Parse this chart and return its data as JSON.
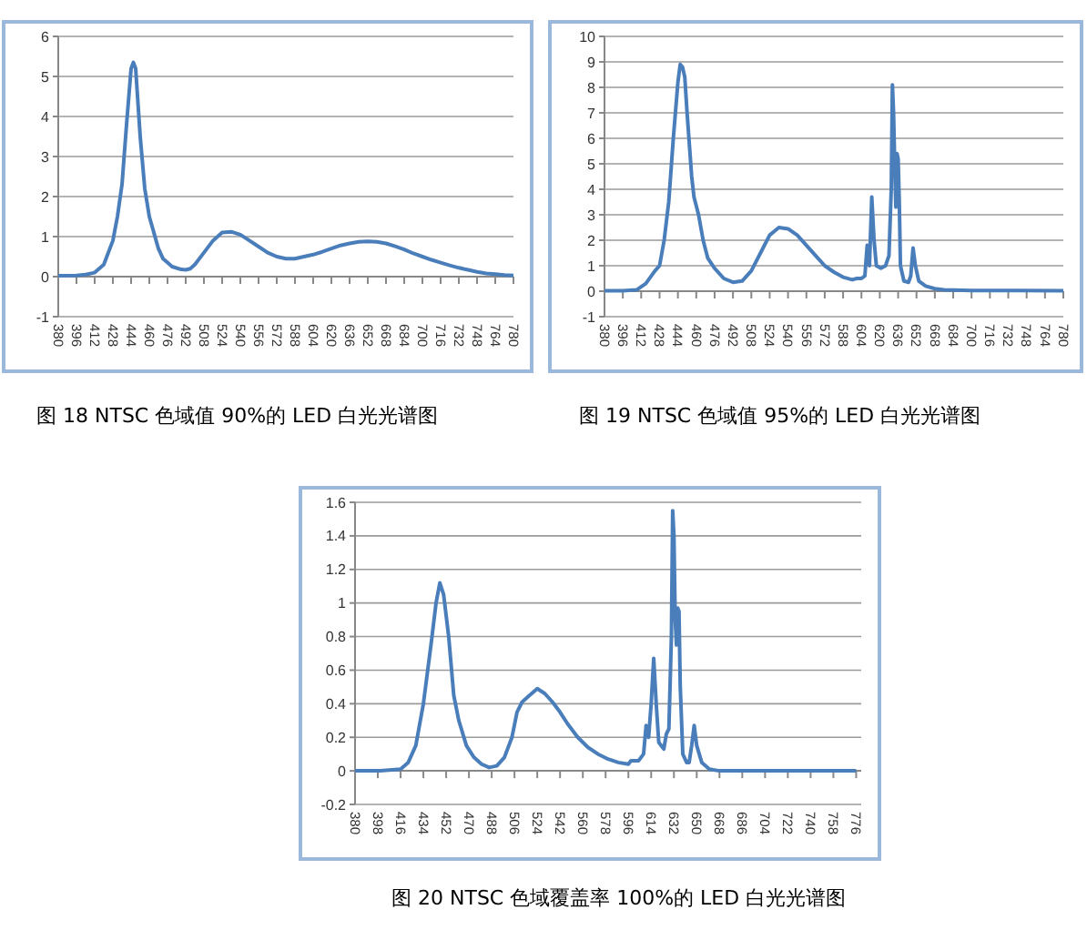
{
  "chart_data": [
    {
      "type": "line",
      "annotations": [
        "图 18 NTSC 色域值 90%的 LED 白光光谱图"
      ],
      "xlim": [
        380,
        780
      ],
      "xticks": [
        380,
        396,
        412,
        428,
        444,
        460,
        476,
        492,
        508,
        524,
        540,
        556,
        572,
        588,
        604,
        620,
        636,
        652,
        668,
        684,
        700,
        716,
        732,
        748,
        764,
        780
      ],
      "ylim": [
        -1,
        6
      ],
      "yticks": [
        -1,
        0,
        1,
        2,
        3,
        4,
        5,
        6
      ],
      "grid": "y",
      "marker": "none",
      "line_style": "solid",
      "series": [
        {
          "color": "#4a7ebb",
          "x": [
            380,
            396,
            404,
            412,
            420,
            428,
            432,
            436,
            440,
            444,
            446,
            448,
            452,
            456,
            460,
            464,
            468,
            472,
            476,
            480,
            488,
            492,
            496,
            500,
            508,
            516,
            524,
            532,
            540,
            548,
            556,
            564,
            572,
            580,
            588,
            596,
            604,
            612,
            620,
            628,
            636,
            644,
            652,
            660,
            668,
            676,
            684,
            692,
            700,
            708,
            716,
            724,
            732,
            740,
            748,
            756,
            764,
            772,
            780
          ],
          "values": [
            0.02,
            0.03,
            0.05,
            0.1,
            0.3,
            0.9,
            1.5,
            2.3,
            3.8,
            5.2,
            5.35,
            5.2,
            3.5,
            2.2,
            1.5,
            1.1,
            0.7,
            0.45,
            0.35,
            0.25,
            0.18,
            0.17,
            0.2,
            0.3,
            0.6,
            0.9,
            1.1,
            1.12,
            1.05,
            0.9,
            0.75,
            0.6,
            0.5,
            0.45,
            0.45,
            0.5,
            0.55,
            0.62,
            0.7,
            0.78,
            0.83,
            0.87,
            0.88,
            0.87,
            0.83,
            0.76,
            0.68,
            0.58,
            0.5,
            0.42,
            0.35,
            0.28,
            0.22,
            0.17,
            0.12,
            0.08,
            0.06,
            0.04,
            0.03
          ]
        }
      ]
    },
    {
      "type": "line",
      "annotations": [
        "图 19 NTSC 色域值 95%的 LED 白光光谱图"
      ],
      "xlim": [
        380,
        780
      ],
      "xticks": [
        380,
        396,
        412,
        428,
        444,
        460,
        476,
        492,
        508,
        524,
        540,
        556,
        572,
        588,
        604,
        620,
        636,
        652,
        668,
        684,
        700,
        716,
        732,
        748,
        764,
        780
      ],
      "ylim": [
        -1,
        10
      ],
      "yticks": [
        -1,
        0,
        1,
        2,
        3,
        4,
        5,
        6,
        7,
        8,
        9,
        10
      ],
      "grid": "y",
      "marker": "none",
      "line_style": "solid",
      "series": [
        {
          "color": "#4a7ebb",
          "x": [
            380,
            396,
            408,
            416,
            424,
            428,
            432,
            436,
            440,
            444,
            446,
            448,
            450,
            452,
            456,
            458,
            462,
            466,
            470,
            476,
            484,
            492,
            500,
            508,
            516,
            524,
            532,
            540,
            548,
            556,
            564,
            572,
            580,
            588,
            596,
            600,
            604,
            607,
            609,
            611,
            613,
            615,
            617,
            621,
            625,
            628,
            630,
            631,
            632,
            633,
            634,
            635,
            636,
            637,
            638,
            641,
            645,
            647,
            649,
            651,
            654,
            660,
            668,
            676,
            700,
            740,
            780
          ],
          "values": [
            0.02,
            0.02,
            0.05,
            0.3,
            0.8,
            1.0,
            2,
            3.5,
            6,
            8.2,
            8.9,
            8.8,
            8.4,
            7,
            4.5,
            3.7,
            3,
            2,
            1.3,
            0.9,
            0.5,
            0.35,
            0.4,
            0.8,
            1.5,
            2.2,
            2.5,
            2.45,
            2.2,
            1.8,
            1.4,
            1.0,
            0.75,
            0.55,
            0.45,
            0.5,
            0.5,
            0.6,
            1.8,
            1.0,
            3.7,
            2,
            1.0,
            0.9,
            1.0,
            1.4,
            4,
            8.1,
            7,
            5,
            3.3,
            5.4,
            5.2,
            3.5,
            1.0,
            0.4,
            0.35,
            0.6,
            1.7,
            1.0,
            0.4,
            0.2,
            0.1,
            0.05,
            0.03,
            0.03,
            0.02
          ]
        }
      ]
    },
    {
      "type": "line",
      "annotations": [
        "图 20 NTSC 色域覆盖率 100%的 LED 白光光谱图"
      ],
      "xlim": [
        380,
        780
      ],
      "xticks": [
        380,
        398,
        416,
        434,
        452,
        470,
        488,
        506,
        524,
        542,
        560,
        578,
        596,
        614,
        632,
        650,
        668,
        686,
        704,
        722,
        740,
        758,
        776
      ],
      "ylim": [
        -0.2,
        1.6
      ],
      "yticks": [
        -0.2,
        0,
        0.2,
        0.4,
        0.6,
        0.8,
        1,
        1.2,
        1.4,
        1.6
      ],
      "grid": "y",
      "marker": "none",
      "line_style": "solid",
      "series": [
        {
          "color": "#4a7ebb",
          "x": [
            380,
            400,
            416,
            422,
            428,
            434,
            440,
            444,
            447,
            450,
            454,
            458,
            462,
            468,
            474,
            480,
            486,
            492,
            498,
            504,
            508,
            512,
            518,
            524,
            530,
            536,
            542,
            548,
            556,
            564,
            572,
            580,
            588,
            596,
            598,
            604,
            608,
            610,
            612,
            614,
            616,
            618,
            620,
            622,
            624,
            626,
            628,
            630,
            631,
            632,
            633,
            634,
            635,
            636,
            637,
            639,
            642,
            644,
            646,
            648,
            650,
            654,
            660,
            668,
            700,
            776
          ],
          "values": [
            0,
            0,
            0.01,
            0.05,
            0.15,
            0.4,
            0.75,
            1.0,
            1.12,
            1.05,
            0.8,
            0.45,
            0.3,
            0.15,
            0.08,
            0.04,
            0.02,
            0.03,
            0.08,
            0.2,
            0.35,
            0.41,
            0.45,
            0.49,
            0.46,
            0.41,
            0.35,
            0.28,
            0.2,
            0.14,
            0.1,
            0.07,
            0.05,
            0.04,
            0.06,
            0.06,
            0.1,
            0.27,
            0.2,
            0.4,
            0.67,
            0.4,
            0.17,
            0.15,
            0.13,
            0.22,
            0.25,
            0.8,
            1.55,
            1.4,
            0.9,
            0.75,
            0.97,
            0.95,
            0.5,
            0.1,
            0.05,
            0.05,
            0.15,
            0.27,
            0.15,
            0.05,
            0.01,
            0,
            0,
            0
          ]
        }
      ]
    }
  ]
}
